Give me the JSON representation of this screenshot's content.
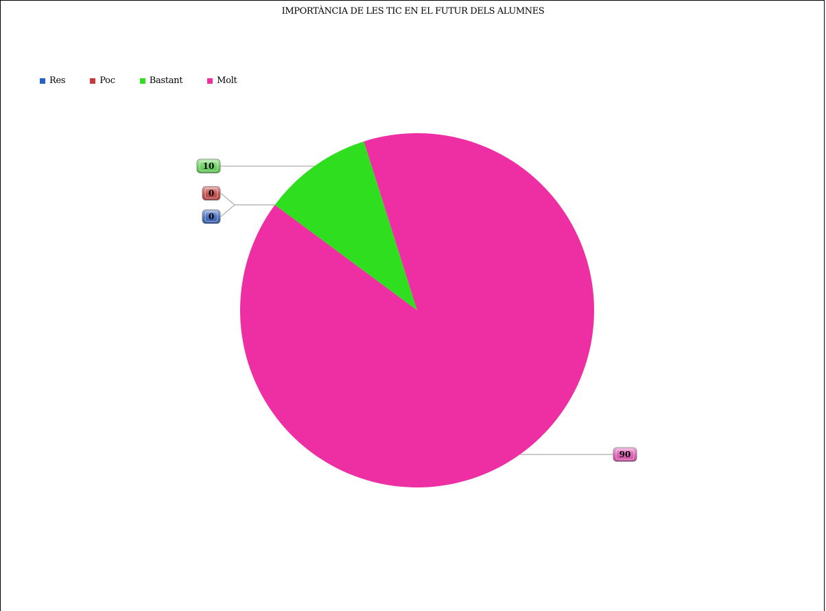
{
  "chart_data": {
    "type": "pie",
    "title": "IMPORTÀNCIA DE LES TIC EN EL FUTUR DELS ALUMNES",
    "legend_placement": "top-left",
    "slices": [
      {
        "label": "Res",
        "value": 0,
        "color": "#2b5fc8",
        "label_fill": "#3a63b8"
      },
      {
        "label": "Poc",
        "value": 0,
        "color": "#c8383a",
        "label_fill": "#c04545"
      },
      {
        "label": "Bastant",
        "value": 10,
        "color": "#30de20",
        "label_fill": "#62cf55"
      },
      {
        "label": "Molt",
        "value": 90,
        "color": "#ee2fa3",
        "label_fill": "#d955ad"
      }
    ]
  }
}
